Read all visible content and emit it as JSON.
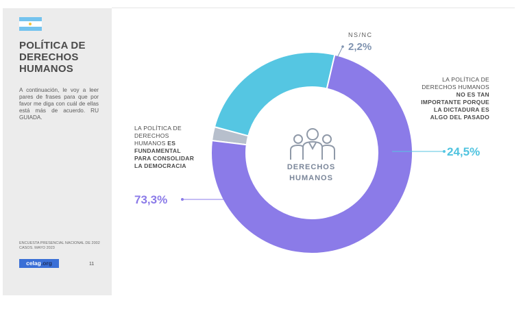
{
  "sidebar": {
    "title": "POLÍTICA DE DERECHOS HUMANOS",
    "intro": "A continuación, le voy a leer pares de frases para que por favor me diga con cuál de ellas está más de acuerdo. RU GUIADA.",
    "source": "ENCUESTA PRESENCIAL NACIONAL DE 2002 CASOS. MAYO 2023",
    "logo_main": "celag",
    "logo_suffix": ".org",
    "page_number": "11"
  },
  "center": {
    "title": "DERECHOS HUMANOS",
    "icon": "people-group-icon"
  },
  "labels": {
    "left_plain": "LA POLÍTICA DE DERECHOS HUMANOS ",
    "left_bold": "ES FUNDAMENTAL PARA CONSOLIDAR LA DEMOCRACIA",
    "right_plain": "LA POLÍTICA DE DERECHOS HUMANOS ",
    "right_bold": "NO ES TAN IMPORTANTE PORQUE LA DICTADURA ES ALGO DEL PASADO",
    "top": "NS/NC"
  },
  "values_text": {
    "left": "73,3%",
    "right": "24,5%",
    "top": "2,2%"
  },
  "colors": {
    "fundamental": "#8b7be8",
    "no_importante": "#55c6e2",
    "nsnc": "#b7bfcc",
    "sidebar_bg": "#ececec",
    "logo": "#3a6fd6"
  },
  "chart_data": {
    "type": "pie",
    "variant": "donut",
    "categories": [
      "NS/NC",
      "LA POLÍTICA DE DERECHOS HUMANOS NO ES TAN IMPORTANTE PORQUE LA DICTADURA ES ALGO DEL PASADO",
      "LA POLÍTICA DE DERECHOS HUMANOS ES FUNDAMENTAL PARA CONSOLIDAR LA DEMOCRACIA"
    ],
    "values": [
      2.2,
      24.5,
      73.3
    ],
    "colors": [
      "#b7bfcc",
      "#55c6e2",
      "#8b7be8"
    ],
    "unit": "%"
  }
}
